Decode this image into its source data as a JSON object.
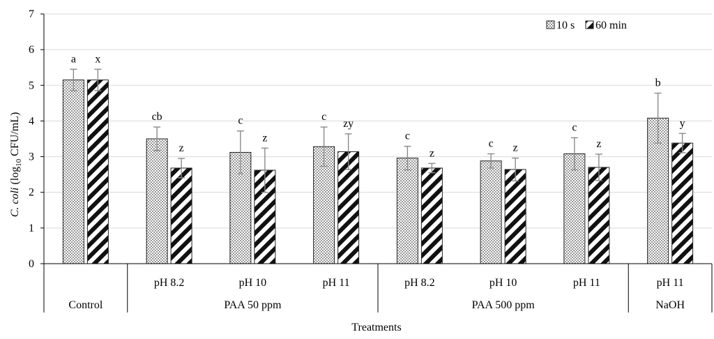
{
  "chart_data": {
    "type": "bar",
    "title": "",
    "xlabel": "Treatments",
    "ylabel_parts": {
      "pre": "C. coli",
      "mid": " (log",
      "sub": "10",
      "post": " CFU/mL)"
    },
    "ylim": [
      0,
      7
    ],
    "yticks": [
      0,
      1,
      2,
      3,
      4,
      5,
      6,
      7
    ],
    "grid": true,
    "legend_position": "top-right",
    "categories": [
      {
        "sub": "",
        "group": "Control"
      },
      {
        "sub": "pH 8.2",
        "group": "PAA 50 ppm"
      },
      {
        "sub": "pH 10",
        "group": "PAA 50 ppm"
      },
      {
        "sub": "pH 11",
        "group": "PAA 50 ppm"
      },
      {
        "sub": "pH 8.2",
        "group": "PAA 500 ppm"
      },
      {
        "sub": "pH 10",
        "group": "PAA 500 ppm"
      },
      {
        "sub": "pH 11",
        "group": "PAA 500 ppm"
      },
      {
        "sub": "pH 11",
        "group": "NaOH"
      }
    ],
    "groups": [
      {
        "label": "Control",
        "count": 1
      },
      {
        "label": "PAA 50 ppm",
        "count": 3
      },
      {
        "label": "PAA 500 ppm",
        "count": 3
      },
      {
        "label": "NaOH",
        "count": 1
      }
    ],
    "series": [
      {
        "name": "10 s",
        "pattern": "dots",
        "values": [
          5.15,
          3.5,
          3.12,
          3.28,
          2.96,
          2.88,
          3.08,
          4.08
        ],
        "errors": [
          0.3,
          0.33,
          0.6,
          0.55,
          0.33,
          0.2,
          0.45,
          0.7
        ],
        "letters": [
          "a",
          "cb",
          "c",
          "c",
          "c",
          "c",
          "c",
          "b"
        ]
      },
      {
        "name": "60 min",
        "pattern": "stripes",
        "values": [
          5.15,
          2.68,
          2.62,
          3.14,
          2.68,
          2.64,
          2.7,
          3.38
        ],
        "errors": [
          0.3,
          0.27,
          0.62,
          0.5,
          0.13,
          0.32,
          0.37,
          0.27
        ],
        "letters": [
          "x",
          "z",
          "z",
          "zy",
          "z",
          "z",
          "z",
          "y"
        ]
      }
    ]
  }
}
